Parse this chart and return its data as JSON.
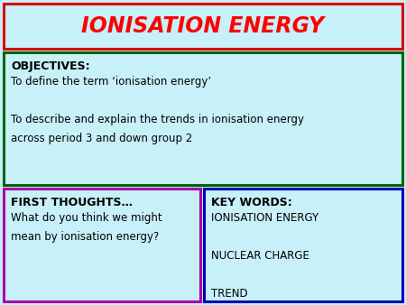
{
  "background_color": "#c8f0f8",
  "title": "IONISATION ENERGY",
  "title_color": "#ff0000",
  "title_box_color": "#dd0000",
  "objectives_box_color": "#006600",
  "objectives_title": "OBJECTIVES:",
  "objectives_lines": [
    "To define the term ‘ionisation energy’",
    "",
    "To describe and explain the trends in ionisation energy",
    "across period 3 and down group 2"
  ],
  "first_thoughts_box_color": "#aa00aa",
  "first_thoughts_title": "FIRST THOUGHTS…",
  "first_thoughts_lines": [
    "What do you think we might",
    "mean by ionisation energy?"
  ],
  "key_words_box_color": "#0000bb",
  "key_words_title": "KEY WORDS:",
  "key_words_lines": [
    "IONISATION ENERGY",
    "",
    "NUCLEAR CHARGE",
    "",
    "TREND"
  ],
  "box_bg": "#c8f0f8",
  "text_color": "#000000",
  "title_fontsize": 17,
  "header_fontsize": 9,
  "body_fontsize": 8.5,
  "lw": 2.2
}
